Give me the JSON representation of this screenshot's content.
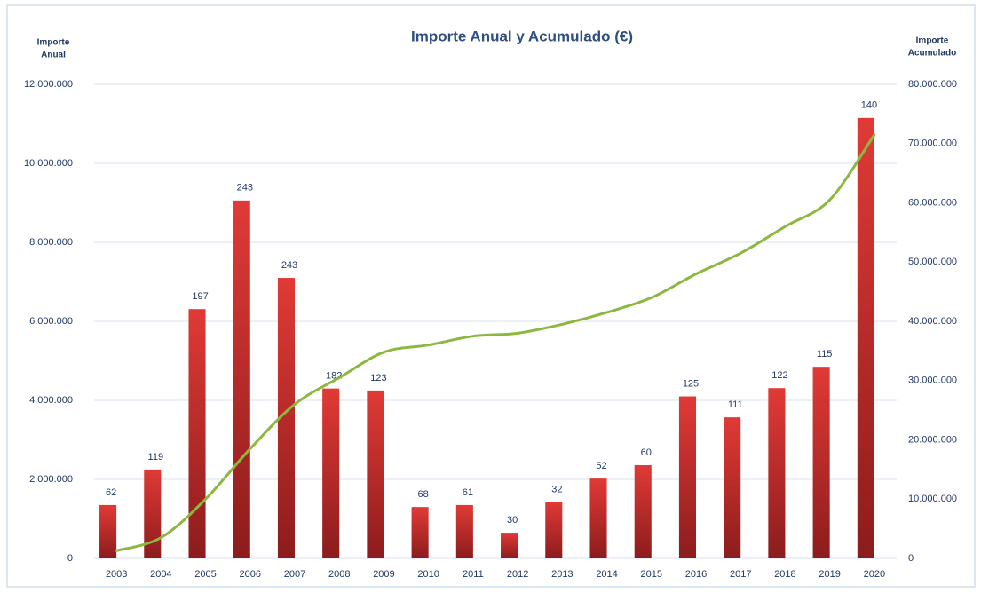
{
  "chart_data": {
    "type": "bar_line",
    "title": "Importe Anual y Acumulado (€)",
    "y_label": [
      "Importe",
      "Anual"
    ],
    "y2_label": [
      "Importe",
      "Acumulado"
    ],
    "categories": [
      "2003",
      "2004",
      "2005",
      "2006",
      "2007",
      "2008",
      "2009",
      "2010",
      "2011",
      "2012",
      "2013",
      "2014",
      "2015",
      "2016",
      "2017",
      "2018",
      "2019",
      "2020"
    ],
    "series": [
      {
        "name": "Importe Anual",
        "type": "bar",
        "color": "#c8302e",
        "axis": "y",
        "values": [
          1350000,
          2250000,
          6310000,
          9060000,
          7100000,
          4300000,
          4250000,
          1300000,
          1350000,
          650000,
          1420000,
          2020000,
          2360000,
          4100000,
          3570000,
          4310000,
          4850000,
          11150000
        ]
      },
      {
        "name": "Importe Acumulado",
        "type": "line",
        "color": "#8db83f",
        "axis": "y2",
        "values": [
          1300000,
          3500000,
          10000000,
          18500000,
          26000000,
          30500000,
          34800000,
          36000000,
          37500000,
          38000000,
          39500000,
          41500000,
          44000000,
          48000000,
          51500000,
          56000000,
          60500000,
          71500000
        ]
      }
    ],
    "bar_labels": [
      62,
      119,
      197,
      243,
      243,
      182,
      123,
      68,
      61,
      30,
      32,
      52,
      60,
      125,
      111,
      122,
      115,
      140
    ],
    "ylim": [
      0,
      12000000
    ],
    "yticks": [
      0,
      {
        "value": 2000000,
        "label": "2.000.000"
      },
      {
        "value": 4000000,
        "label": "4.000.000"
      },
      {
        "value": 6000000,
        "label": "6.000.000"
      },
      {
        "value": 8000000,
        "label": "8.000.000"
      },
      {
        "value": 10000000,
        "label": "10.000.000"
      },
      {
        "value": 12000000,
        "label": "12.000.000"
      }
    ],
    "y2lim": [
      0,
      80000000
    ],
    "y2ticks": [
      0,
      {
        "value": 10000000,
        "label": "10.000.000"
      },
      {
        "value": 20000000,
        "label": "20.000.000"
      },
      {
        "value": 30000000,
        "label": "30.000.000"
      },
      {
        "value": 40000000,
        "label": "40.000.000"
      },
      {
        "value": 50000000,
        "label": "50.000.000"
      },
      {
        "value": 60000000,
        "label": "60.000.000"
      },
      {
        "value": 70000000,
        "label": "70.000.000"
      },
      {
        "value": 80000000,
        "label": "80.000.000"
      }
    ],
    "grid": true
  }
}
